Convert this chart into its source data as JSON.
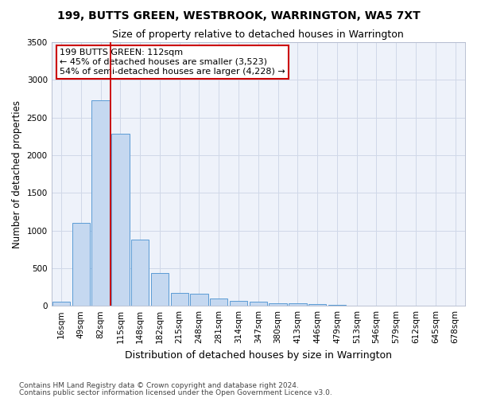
{
  "title": "199, BUTTS GREEN, WESTBROOK, WARRINGTON, WA5 7XT",
  "subtitle": "Size of property relative to detached houses in Warrington",
  "xlabel": "Distribution of detached houses by size in Warrington",
  "ylabel": "Number of detached properties",
  "categories": [
    "16sqm",
    "49sqm",
    "82sqm",
    "115sqm",
    "148sqm",
    "182sqm",
    "215sqm",
    "248sqm",
    "281sqm",
    "314sqm",
    "347sqm",
    "380sqm",
    "413sqm",
    "446sqm",
    "479sqm",
    "513sqm",
    "546sqm",
    "579sqm",
    "612sqm",
    "645sqm",
    "678sqm"
  ],
  "values": [
    55,
    1100,
    2730,
    2290,
    875,
    430,
    170,
    160,
    95,
    65,
    55,
    35,
    30,
    20,
    10,
    0,
    0,
    0,
    0,
    0,
    0
  ],
  "bar_color": "#c5d8f0",
  "bar_edge_color": "#5b9bd5",
  "grid_color": "#d0d8e8",
  "background_color": "#eef2fa",
  "annotation_line1": "199 BUTTS GREEN: 112sqm",
  "annotation_line2": "← 45% of detached houses are smaller (3,523)",
  "annotation_line3": "54% of semi-detached houses are larger (4,228) →",
  "annotation_box_color": "#ffffff",
  "annotation_box_edge_color": "#cc0000",
  "vline_x": 2.5,
  "vline_color": "#cc0000",
  "ylim": [
    0,
    3500
  ],
  "yticks": [
    0,
    500,
    1000,
    1500,
    2000,
    2500,
    3000,
    3500
  ],
  "footer_line1": "Contains HM Land Registry data © Crown copyright and database right 2024.",
  "footer_line2": "Contains public sector information licensed under the Open Government Licence v3.0.",
  "title_fontsize": 10,
  "subtitle_fontsize": 9,
  "xlabel_fontsize": 9,
  "ylabel_fontsize": 8.5,
  "tick_fontsize": 7.5,
  "annotation_fontsize": 8,
  "footer_fontsize": 6.5
}
